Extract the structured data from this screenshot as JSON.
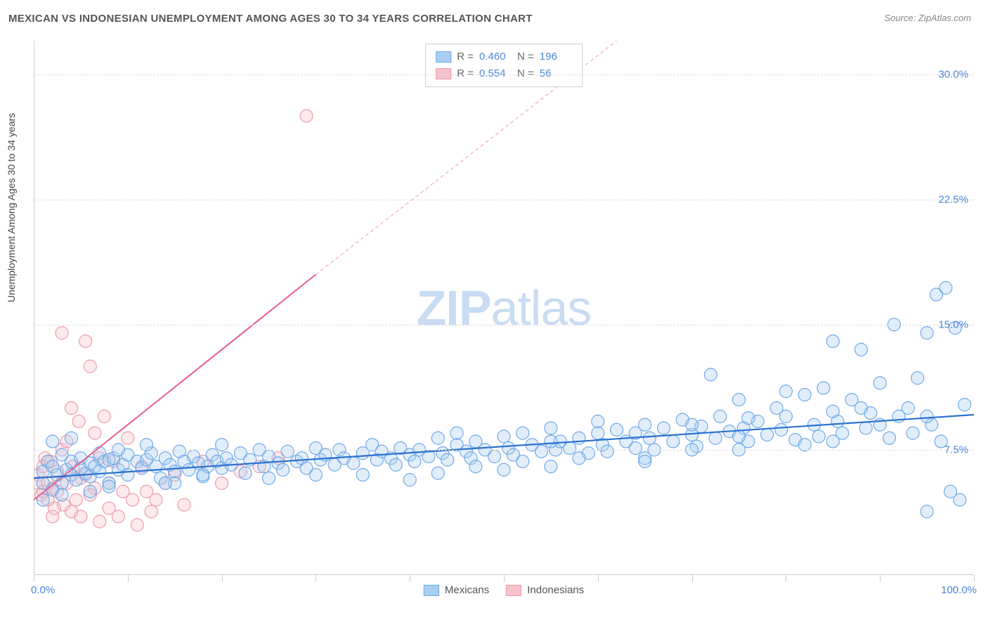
{
  "header": {
    "title": "MEXICAN VS INDONESIAN UNEMPLOYMENT AMONG AGES 30 TO 34 YEARS CORRELATION CHART",
    "source_prefix": "Source: ",
    "source_name": "ZipAtlas.com"
  },
  "chart": {
    "type": "scatter",
    "ylabel": "Unemployment Among Ages 30 to 34 years",
    "xlim": [
      0,
      100
    ],
    "ylim": [
      0,
      32
    ],
    "x_min_label": "0.0%",
    "x_max_label": "100.0%",
    "ytick_values": [
      7.5,
      15.0,
      22.5,
      30.0
    ],
    "ytick_labels": [
      "7.5%",
      "15.0%",
      "22.5%",
      "30.0%"
    ],
    "xtick_positions": [
      0,
      10,
      20,
      30,
      40,
      50,
      60,
      70,
      80,
      90,
      100
    ],
    "background_color": "#ffffff",
    "grid_color": "#dddddd",
    "axis_color": "#cccccc",
    "tick_label_color": "#4a86d8",
    "marker_radius": 9,
    "series": {
      "mexicans": {
        "name": "Mexicans",
        "color_fill": "#a9cef2",
        "color_stroke": "#6fa8e8",
        "R": "0.460",
        "N": "196",
        "regression": {
          "x1": 0,
          "y1": 5.8,
          "x2": 100,
          "y2": 9.6,
          "stroke": "#2b72d0",
          "width": 2.2
        },
        "points": [
          [
            1,
            5.5
          ],
          [
            1,
            6.2
          ],
          [
            1.5,
            6.8
          ],
          [
            2,
            5.1
          ],
          [
            2,
            6.5
          ],
          [
            2.5,
            6.0
          ],
          [
            3,
            5.5
          ],
          [
            3,
            7.2
          ],
          [
            3.5,
            6.3
          ],
          [
            4,
            6.0
          ],
          [
            4,
            6.8
          ],
          [
            4.5,
            5.7
          ],
          [
            5,
            6.4
          ],
          [
            5,
            7.0
          ],
          [
            5.5,
            6.1
          ],
          [
            6,
            6.7
          ],
          [
            6,
            5.9
          ],
          [
            6.5,
            6.5
          ],
          [
            7,
            7.3
          ],
          [
            7,
            6.2
          ],
          [
            7.5,
            6.8
          ],
          [
            8,
            5.5
          ],
          [
            8,
            6.9
          ],
          [
            8.5,
            7.0
          ],
          [
            9,
            6.3
          ],
          [
            9,
            7.5
          ],
          [
            9.5,
            6.6
          ],
          [
            10,
            6.0
          ],
          [
            10,
            7.2
          ],
          [
            11,
            6.8
          ],
          [
            11.5,
            6.4
          ],
          [
            12,
            6.9
          ],
          [
            12.5,
            7.3
          ],
          [
            13,
            6.5
          ],
          [
            13.5,
            5.8
          ],
          [
            14,
            7.0
          ],
          [
            14.5,
            6.6
          ],
          [
            15,
            6.2
          ],
          [
            15.5,
            7.4
          ],
          [
            16,
            6.8
          ],
          [
            16.5,
            6.3
          ],
          [
            17,
            7.1
          ],
          [
            17.5,
            6.7
          ],
          [
            18,
            5.9
          ],
          [
            18.5,
            6.5
          ],
          [
            19,
            7.2
          ],
          [
            19.5,
            6.8
          ],
          [
            20,
            6.4
          ],
          [
            20.5,
            7.0
          ],
          [
            21,
            6.6
          ],
          [
            22,
            7.3
          ],
          [
            22.5,
            6.1
          ],
          [
            23,
            6.9
          ],
          [
            24,
            7.5
          ],
          [
            24.5,
            6.5
          ],
          [
            25,
            7.1
          ],
          [
            26,
            6.7
          ],
          [
            26.5,
            6.3
          ],
          [
            27,
            7.4
          ],
          [
            28,
            6.8
          ],
          [
            28.5,
            7.0
          ],
          [
            29,
            6.4
          ],
          [
            30,
            7.6
          ],
          [
            30.5,
            6.9
          ],
          [
            31,
            7.2
          ],
          [
            32,
            6.6
          ],
          [
            32.5,
            7.5
          ],
          [
            33,
            7.0
          ],
          [
            34,
            6.7
          ],
          [
            35,
            7.3
          ],
          [
            36,
            7.8
          ],
          [
            36.5,
            6.9
          ],
          [
            37,
            7.4
          ],
          [
            38,
            7.0
          ],
          [
            38.5,
            6.6
          ],
          [
            39,
            7.6
          ],
          [
            40,
            7.2
          ],
          [
            40.5,
            6.8
          ],
          [
            41,
            7.5
          ],
          [
            42,
            7.1
          ],
          [
            43,
            8.2
          ],
          [
            43.5,
            7.3
          ],
          [
            44,
            6.9
          ],
          [
            45,
            7.8
          ],
          [
            46,
            7.4
          ],
          [
            46.5,
            7.0
          ],
          [
            47,
            8.0
          ],
          [
            48,
            7.5
          ],
          [
            49,
            7.1
          ],
          [
            50,
            8.3
          ],
          [
            50.5,
            7.6
          ],
          [
            51,
            7.2
          ],
          [
            52,
            8.5
          ],
          [
            53,
            7.8
          ],
          [
            54,
            7.4
          ],
          [
            55,
            8.8
          ],
          [
            55.5,
            7.5
          ],
          [
            56,
            8.0
          ],
          [
            57,
            7.6
          ],
          [
            58,
            8.2
          ],
          [
            59,
            7.3
          ],
          [
            60,
            8.5
          ],
          [
            60.5,
            7.8
          ],
          [
            61,
            7.4
          ],
          [
            62,
            8.7
          ],
          [
            63,
            8.0
          ],
          [
            64,
            7.6
          ],
          [
            65,
            9.0
          ],
          [
            65.5,
            8.2
          ],
          [
            66,
            7.5
          ],
          [
            67,
            8.8
          ],
          [
            68,
            8.0
          ],
          [
            69,
            9.3
          ],
          [
            70,
            8.4
          ],
          [
            70.5,
            7.7
          ],
          [
            71,
            8.9
          ],
          [
            72,
            12.0
          ],
          [
            72.5,
            8.2
          ],
          [
            73,
            9.5
          ],
          [
            74,
            8.6
          ],
          [
            75,
            10.5
          ],
          [
            75.5,
            8.8
          ],
          [
            76,
            8.0
          ],
          [
            77,
            9.2
          ],
          [
            78,
            8.4
          ],
          [
            79,
            10.0
          ],
          [
            79.5,
            8.7
          ],
          [
            80,
            9.5
          ],
          [
            81,
            8.1
          ],
          [
            82,
            10.8
          ],
          [
            83,
            9.0
          ],
          [
            83.5,
            8.3
          ],
          [
            84,
            11.2
          ],
          [
            85,
            14.0
          ],
          [
            85.5,
            9.2
          ],
          [
            86,
            8.5
          ],
          [
            87,
            10.5
          ],
          [
            88,
            13.5
          ],
          [
            88.5,
            8.8
          ],
          [
            89,
            9.7
          ],
          [
            90,
            11.5
          ],
          [
            91,
            8.2
          ],
          [
            91.5,
            15.0
          ],
          [
            92,
            9.5
          ],
          [
            93,
            10.0
          ],
          [
            93.5,
            8.5
          ],
          [
            94,
            11.8
          ],
          [
            95,
            14.5
          ],
          [
            95.5,
            9.0
          ],
          [
            96,
            16.8
          ],
          [
            96.5,
            8.0
          ],
          [
            97,
            17.2
          ],
          [
            97.5,
            5.0
          ],
          [
            98,
            14.8
          ],
          [
            98.5,
            4.5
          ],
          [
            99,
            10.2
          ],
          [
            43,
            6.1
          ],
          [
            47,
            6.5
          ],
          [
            52,
            6.8
          ],
          [
            58,
            7.0
          ],
          [
            64,
            8.5
          ],
          [
            70,
            9.0
          ],
          [
            76,
            9.4
          ],
          [
            82,
            7.8
          ],
          [
            88,
            10.0
          ],
          [
            35,
            6.0
          ],
          [
            25,
            5.8
          ],
          [
            15,
            5.5
          ],
          [
            55,
            6.5
          ],
          [
            65,
            7.0
          ],
          [
            75,
            7.5
          ],
          [
            85,
            8.0
          ],
          [
            95,
            3.8
          ],
          [
            90,
            9.0
          ],
          [
            80,
            11.0
          ],
          [
            70,
            7.5
          ],
          [
            60,
            9.2
          ],
          [
            50,
            6.3
          ],
          [
            40,
            5.7
          ],
          [
            30,
            6.0
          ],
          [
            20,
            7.8
          ],
          [
            45,
            8.5
          ],
          [
            55,
            8.0
          ],
          [
            65,
            6.8
          ],
          [
            75,
            8.3
          ],
          [
            85,
            9.8
          ],
          [
            95,
            9.5
          ],
          [
            12,
            7.8
          ],
          [
            18,
            6.0
          ],
          [
            6,
            5.0
          ],
          [
            3,
            4.8
          ],
          [
            1,
            4.5
          ],
          [
            2,
            8.0
          ],
          [
            4,
            8.2
          ],
          [
            8,
            5.3
          ],
          [
            14,
            5.5
          ]
        ]
      },
      "indonesians": {
        "name": "Indonesians",
        "color_fill": "#f5c2cc",
        "color_stroke": "#ed9aad",
        "R": "0.554",
        "N": "56",
        "regression_solid": {
          "x1": 0,
          "y1": 4.5,
          "x2": 30,
          "y2": 18.0,
          "stroke": "#e85d88",
          "width": 2.0
        },
        "regression_dashed": {
          "x1": 30,
          "y1": 18.0,
          "x2": 62,
          "y2": 32.0,
          "stroke": "#f2a8bd",
          "width": 1.2,
          "dash": "5,4"
        },
        "points": [
          [
            0.5,
            6.0
          ],
          [
            0.5,
            5.5
          ],
          [
            0.8,
            4.8
          ],
          [
            1,
            6.5
          ],
          [
            1,
            5.0
          ],
          [
            1.2,
            7.0
          ],
          [
            1.5,
            5.5
          ],
          [
            1.5,
            4.5
          ],
          [
            1.8,
            6.8
          ],
          [
            2,
            5.2
          ],
          [
            2,
            3.5
          ],
          [
            2.2,
            4.0
          ],
          [
            2.5,
            6.2
          ],
          [
            2.5,
            5.0
          ],
          [
            3,
            14.5
          ],
          [
            3,
            7.5
          ],
          [
            3.2,
            4.2
          ],
          [
            3.5,
            8.0
          ],
          [
            3.5,
            5.5
          ],
          [
            4,
            10.0
          ],
          [
            4,
            3.8
          ],
          [
            4.2,
            6.5
          ],
          [
            4.5,
            4.5
          ],
          [
            4.8,
            9.2
          ],
          [
            5,
            5.8
          ],
          [
            5,
            3.5
          ],
          [
            5.5,
            14.0
          ],
          [
            5.5,
            6.0
          ],
          [
            6,
            12.5
          ],
          [
            6,
            4.8
          ],
          [
            6.5,
            8.5
          ],
          [
            6.5,
            5.2
          ],
          [
            7,
            7.0
          ],
          [
            7,
            3.2
          ],
          [
            7.5,
            9.5
          ],
          [
            8,
            5.5
          ],
          [
            8,
            4.0
          ],
          [
            8.5,
            6.8
          ],
          [
            9,
            3.5
          ],
          [
            9.5,
            5.0
          ],
          [
            10,
            8.2
          ],
          [
            10.5,
            4.5
          ],
          [
            11,
            3.0
          ],
          [
            11.5,
            6.5
          ],
          [
            12,
            5.0
          ],
          [
            12.5,
            3.8
          ],
          [
            13,
            4.5
          ],
          [
            14,
            5.5
          ],
          [
            15,
            6.0
          ],
          [
            16,
            4.2
          ],
          [
            18,
            6.8
          ],
          [
            20,
            5.5
          ],
          [
            22,
            6.2
          ],
          [
            24,
            6.5
          ],
          [
            26,
            7.0
          ],
          [
            29,
            27.5
          ]
        ]
      }
    },
    "legend_bottom": [
      {
        "label": "Mexicans",
        "fill": "#a9cef2",
        "stroke": "#6fa8e8"
      },
      {
        "label": "Indonesians",
        "fill": "#f5c2cc",
        "stroke": "#ed9aad"
      }
    ],
    "watermark": {
      "zip": "ZIP",
      "atlas": "atlas",
      "color": "#c8dcf2"
    }
  }
}
